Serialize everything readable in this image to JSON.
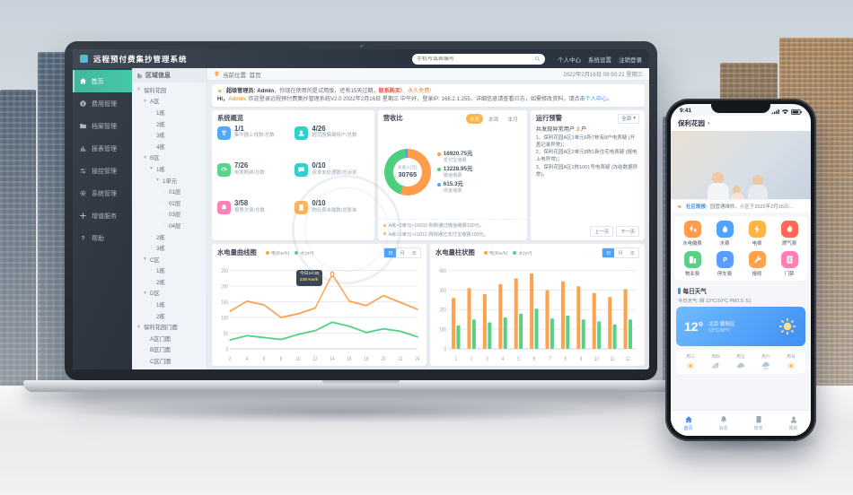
{
  "laptop": {
    "topbar": {
      "title": "远程预付费集抄管理系统",
      "search_placeholder": "手机号或表编号",
      "links": [
        "个人中心",
        "系统设置",
        "注销登录"
      ]
    },
    "crumbs": {
      "location": "当前位置: 首页",
      "datetime": "2022年2月16日  09:50:21  星期三"
    },
    "sidebar": [
      {
        "label": "首页",
        "icon": "home-icon",
        "active": true
      },
      {
        "label": "费用管理",
        "icon": "fee-icon"
      },
      {
        "label": "档案管理",
        "icon": "archive-icon"
      },
      {
        "label": "报表管理",
        "icon": "report-icon"
      },
      {
        "label": "操控管理",
        "icon": "control-icon"
      },
      {
        "label": "系统管理",
        "icon": "system-icon"
      },
      {
        "label": "增值服务",
        "icon": "value-icon"
      },
      {
        "label": "帮助",
        "icon": "help-icon"
      }
    ],
    "region_panel": {
      "title": "区域信息",
      "tree": [
        {
          "label": "保利花园",
          "level": 0,
          "parent": true
        },
        {
          "label": "A区",
          "level": 1,
          "parent": true
        },
        {
          "label": "1栋",
          "level": 2
        },
        {
          "label": "2栋",
          "level": 2
        },
        {
          "label": "3栋",
          "level": 2
        },
        {
          "label": "4栋",
          "level": 2
        },
        {
          "label": "B区",
          "level": 1,
          "parent": true
        },
        {
          "label": "1栋",
          "level": 2,
          "parent": true
        },
        {
          "label": "1单元",
          "level": 3,
          "parent": true
        },
        {
          "label": "01层",
          "level": 4
        },
        {
          "label": "02层",
          "level": 4
        },
        {
          "label": "03层",
          "level": 4
        },
        {
          "label": "04层",
          "level": 4
        },
        {
          "label": "2栋",
          "level": 2
        },
        {
          "label": "3栋",
          "level": 2
        },
        {
          "label": "C区",
          "level": 1,
          "parent": true
        },
        {
          "label": "1栋",
          "level": 2
        },
        {
          "label": "2栋",
          "level": 2
        },
        {
          "label": "D区",
          "level": 1,
          "parent": true
        },
        {
          "label": "1栋",
          "level": 2
        },
        {
          "label": "2栋",
          "level": 2
        },
        {
          "label": "保利花园门面",
          "level": 0,
          "parent": true
        },
        {
          "label": "A区门面",
          "level": 1
        },
        {
          "label": "B区门面",
          "level": 1
        },
        {
          "label": "C区门面",
          "level": 1
        }
      ]
    },
    "notice": {
      "l1_admin": "超级管理员: Admin",
      "l1_text": "，你现在使用的是试用版，还有15天过期，",
      "l1_buy": "联系购买!",
      "l1_free": "，永久免费!",
      "l2_hi": "Hi，",
      "l2_admin": "Admin",
      "l2_text": ": 欢迎登录远程预付费集抄管理系统V2.0   2022年2月16日 星期三 中午好，登录IP: 168.2.1.255，详细信息请查看",
      "l2_log": "日志",
      "l2_mid": "，如需修改资料，请点击",
      "l2_center": "个人中心",
      "l2_end": "。"
    },
    "overview": {
      "title": "系统概览",
      "stats": [
        {
          "value": "1/1",
          "label": "集中器上线数/总数",
          "icon": "concentrator-icon",
          "color": "#4da3ff"
        },
        {
          "value": "4/26",
          "label": "超范围偏离用户/总数",
          "icon": "user-range-icon",
          "color": "#2ad1c9"
        },
        {
          "value": "7/26",
          "label": "电表断闸/总数",
          "icon": "meter-off-icon",
          "color": "#57d188"
        },
        {
          "value": "0/10",
          "label": "诉求未处理数/总诉求",
          "icon": "ticket-icon",
          "color": "#2ad1c9"
        },
        {
          "value": "3/58",
          "label": "报警欠费/总数",
          "icon": "alarm-icon",
          "color": "#ff7eb3"
        },
        {
          "value": "0/10",
          "label": "物业费未缴数/总账单",
          "icon": "bill-icon",
          "color": "#ffb45e"
        }
      ]
    },
    "warning": {
      "title": "运行预警",
      "filter_value": "全部",
      "summary_prefix": "共发现异常用户 ",
      "summary_count": "3",
      "summary_suffix": " 户",
      "items": [
        "1、保利花园A区1单元6所7栋有8户电表疑 (开盖记录异常)；",
        "2、保利花园A区2单元8栋1新住宅电表疑 (报电上电异常)；",
        "3、保利花园A区1栋1001号电表疑 (冻结数据异常)。"
      ],
      "prev_label": "上一页",
      "next_label": "下一页"
    }
  },
  "chart_data": [
    {
      "id": "energy-line",
      "type": "line",
      "title": "水电量曲线图",
      "period_tabs": [
        "日",
        "月",
        "年"
      ],
      "active_period": "日",
      "x": [
        2,
        4,
        6,
        8,
        10,
        12,
        14,
        16,
        18,
        20,
        22,
        24
      ],
      "ylim": [
        0,
        250
      ],
      "yticks": [
        0,
        50,
        100,
        150,
        200,
        250
      ],
      "series": [
        {
          "name": "电(Kw/h)",
          "color": "#ffa24d",
          "values": [
            120,
            152,
            140,
            100,
            112,
            130,
            238,
            152,
            138,
            170,
            148,
            126
          ]
        },
        {
          "name": "水(m³)",
          "color": "#57d188",
          "values": [
            28,
            42,
            36,
            30,
            46,
            58,
            85,
            72,
            52,
            64,
            56,
            38
          ]
        }
      ],
      "tooltip": {
        "title": "今日14:30",
        "value": "238 Kw/h"
      }
    },
    {
      "id": "energy-bar",
      "type": "bar",
      "title": "水电量柱状图",
      "period_tabs": [
        "日",
        "月",
        "年"
      ],
      "active_period": "日",
      "categories": [
        1,
        2,
        3,
        4,
        5,
        6,
        7,
        8,
        9,
        10,
        11,
        12
      ],
      "ylim": [
        0,
        400
      ],
      "yticks": [
        0,
        100,
        200,
        300,
        400
      ],
      "series": [
        {
          "name": "电(Kw/h)",
          "color": "#ffa24d",
          "values": [
            260,
            310,
            280,
            330,
            360,
            385,
            300,
            345,
            320,
            285,
            265,
            305
          ]
        },
        {
          "name": "水(m³)",
          "color": "#57d188",
          "values": [
            120,
            150,
            135,
            160,
            180,
            205,
            155,
            170,
            150,
            140,
            125,
            150
          ]
        }
      ]
    },
    {
      "id": "revenue-donut",
      "type": "pie",
      "title": "营收比",
      "period_tabs": [
        "今天",
        "本周",
        "本月"
      ],
      "active_period": "今天",
      "center_label": "总收入(元)",
      "center_value": "30765",
      "slices": [
        {
          "label": "支付宝缴费",
          "amount": "16920.75元",
          "value": 16920.75,
          "color": "#ff9d4d"
        },
        {
          "label": "微信缴费",
          "amount": "13228.95元",
          "value": 13228.95,
          "color": "#4cd07d"
        },
        {
          "label": "现金缴费",
          "amount": "615.3元",
          "value": 615.3,
          "color": "#4da3ff"
        }
      ],
      "messages": [
        "A栋>2单元>16033 刚刚通过微信缴费100元。",
        "A栋>1单元>11012 刚刚通过支付宝缴费100元。"
      ]
    }
  ],
  "phone": {
    "status_time": "9:41",
    "header_title": "保利花园",
    "notice_tag": "社区晚报:",
    "notice_text": "园管通维修，小区于2022年2月16日…",
    "grid": [
      {
        "label": "水电缴费",
        "icon": "power-pay-icon",
        "color": "#ff9d4d"
      },
      {
        "label": "水费",
        "icon": "water-icon",
        "color": "#4da3ff"
      },
      {
        "label": "电费",
        "icon": "electric-icon",
        "color": "#ffb545"
      },
      {
        "label": "燃气费",
        "icon": "gas-icon",
        "color": "#ff6b57"
      },
      {
        "label": "物业费",
        "icon": "property-icon",
        "color": "#57d188"
      },
      {
        "label": "停车费",
        "icon": "parking-icon",
        "color": "#5a9cff"
      },
      {
        "label": "报修",
        "icon": "repair-icon",
        "color": "#ffa24d"
      },
      {
        "label": "门禁",
        "icon": "door-icon",
        "color": "#ff7eb3"
      }
    ],
    "weather": {
      "section_title": "每日天气",
      "today_line": "今日天气: 晴 13°C/10°C   PM2.5: 51",
      "card_temp": "12°",
      "card_city": "北京 朝阳区",
      "card_range": "13°C/10°C",
      "forecast": [
        {
          "day": "周三",
          "icon": "sun-icon"
        },
        {
          "day": "周四",
          "icon": "cloudsun-icon"
        },
        {
          "day": "周五",
          "icon": "cloud-icon"
        },
        {
          "day": "周六",
          "icon": "rain-icon"
        },
        {
          "day": "周日",
          "icon": "sun-icon"
        }
      ]
    },
    "nav": [
      {
        "label": "首页",
        "icon": "home-icon",
        "active": true
      },
      {
        "label": "消息",
        "icon": "message-icon"
      },
      {
        "label": "账单",
        "icon": "bill-icon"
      },
      {
        "label": "我的",
        "icon": "profile-icon"
      }
    ]
  }
}
